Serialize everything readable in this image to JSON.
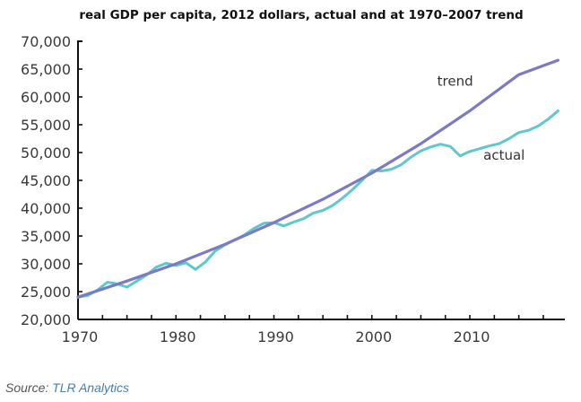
{
  "chart_data": {
    "type": "line",
    "title": "real GDP per capita, 2012 dollars, actual and at 1970–2007 trend",
    "xlabel": "",
    "ylabel": "",
    "xlim": [
      1970,
      2019.7
    ],
    "ylim": [
      20000,
      70000
    ],
    "x_ticks": [
      1970,
      1980,
      1990,
      2000,
      2010
    ],
    "x_minor_step": 2.5,
    "y_ticks": [
      20000,
      25000,
      30000,
      35000,
      40000,
      45000,
      50000,
      55000,
      60000,
      65000,
      70000
    ],
    "y_tick_labels": [
      "20,000",
      "25,000",
      "30,000",
      "35,000",
      "40,000",
      "45,000",
      "50,000",
      "55,000",
      "60,000",
      "65,000",
      "70,000"
    ],
    "x_tick_labels": [
      "1970",
      "1980",
      "1990",
      "2000",
      "2010"
    ],
    "grid": false,
    "legend": "none (inline labels)",
    "series": [
      {
        "name": "trend",
        "label": "trend",
        "color": "#7b7bc4",
        "x": [
          1970,
          1975,
          1980,
          1985,
          1990,
          1995,
          2000,
          2005,
          2010,
          2015,
          2019
        ],
        "y": [
          24000,
          26900,
          30000,
          33500,
          37400,
          41600,
          46300,
          51600,
          57500,
          64000,
          66600
        ]
      },
      {
        "name": "actual",
        "label": "actual",
        "color": "#5ec8cc",
        "x": [
          1970,
          1971,
          1972,
          1973,
          1974,
          1975,
          1976,
          1977,
          1978,
          1979,
          1980,
          1981,
          1982,
          1983,
          1984,
          1985,
          1986,
          1987,
          1988,
          1989,
          1990,
          1991,
          1992,
          1993,
          1994,
          1995,
          1996,
          1997,
          1998,
          1999,
          2000,
          2001,
          2002,
          2003,
          2004,
          2005,
          2006,
          2007,
          2008,
          2009,
          2010,
          2011,
          2012,
          2013,
          2014,
          2015,
          2016,
          2017,
          2018,
          2019
        ],
        "y": [
          24000,
          24300,
          25300,
          26700,
          26400,
          25800,
          26900,
          28000,
          29400,
          30100,
          29700,
          30200,
          29000,
          30300,
          32300,
          33400,
          34300,
          35200,
          36400,
          37300,
          37400,
          36800,
          37500,
          38100,
          39100,
          39600,
          40500,
          41800,
          43300,
          45000,
          46800,
          46700,
          47000,
          47800,
          49200,
          50300,
          51000,
          51500,
          51100,
          49400,
          50200,
          50700,
          51200,
          51600,
          52500,
          53600,
          54000,
          54800,
          56000,
          57500
        ]
      }
    ],
    "annotations": [
      {
        "text": "trend",
        "x": 2008.5,
        "y": 62000
      },
      {
        "text": "actual",
        "x": 2013.5,
        "y": 48700
      }
    ]
  },
  "source": {
    "prefix": "Source:",
    "name": "TLR Analytics"
  }
}
